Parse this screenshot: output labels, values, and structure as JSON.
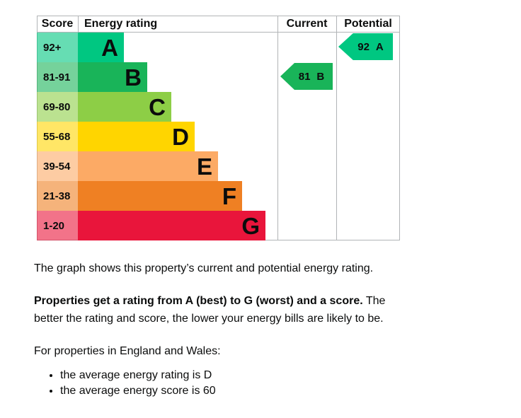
{
  "chart_data": {
    "type": "bar",
    "title": "Energy rating",
    "columns": [
      "Score",
      "Energy rating",
      "Current",
      "Potential"
    ],
    "categories": [
      "A",
      "B",
      "C",
      "D",
      "E",
      "F",
      "G"
    ],
    "score_ranges": [
      "92+",
      "81-91",
      "69-80",
      "55-68",
      "39-54",
      "21-38",
      "1-20"
    ],
    "band_colors": [
      "#00c781",
      "#19b459",
      "#8dce46",
      "#ffd500",
      "#fcaa65",
      "#ef8023",
      "#e9153b"
    ],
    "current": {
      "score": 81,
      "rating": "B"
    },
    "potential": {
      "score": 92,
      "rating": "A"
    }
  },
  "chart": {
    "headers": {
      "score": "Score",
      "energy_rating": "Energy rating",
      "current": "Current",
      "potential": "Potential"
    },
    "bands": [
      {
        "range": "92+",
        "letter": "A",
        "color": "#00c781"
      },
      {
        "range": "81-91",
        "letter": "B",
        "color": "#19b459"
      },
      {
        "range": "69-80",
        "letter": "C",
        "color": "#8dce46"
      },
      {
        "range": "55-68",
        "letter": "D",
        "color": "#ffd500"
      },
      {
        "range": "39-54",
        "letter": "E",
        "color": "#fcaa65"
      },
      {
        "range": "21-38",
        "letter": "F",
        "color": "#ef8023"
      },
      {
        "range": "1-20",
        "letter": "G",
        "color": "#e9153b"
      }
    ],
    "current": {
      "score": "81",
      "letter": "B"
    },
    "potential": {
      "score": "92",
      "letter": "A"
    }
  },
  "description": {
    "intro": "The graph shows this property’s current and potential energy rating.",
    "lead_bold": "Properties get a rating from A (best) to G (worst) and a score.",
    "lead_rest": " The better the rating and score, the lower your energy bills are likely to be.",
    "regions_line": "For properties in England and Wales:",
    "bullets": [
      "the average energy rating is D",
      "the average energy score is 60"
    ]
  },
  "colors": {
    "border": "#b1b4b6",
    "text": "#0b0c0c"
  }
}
